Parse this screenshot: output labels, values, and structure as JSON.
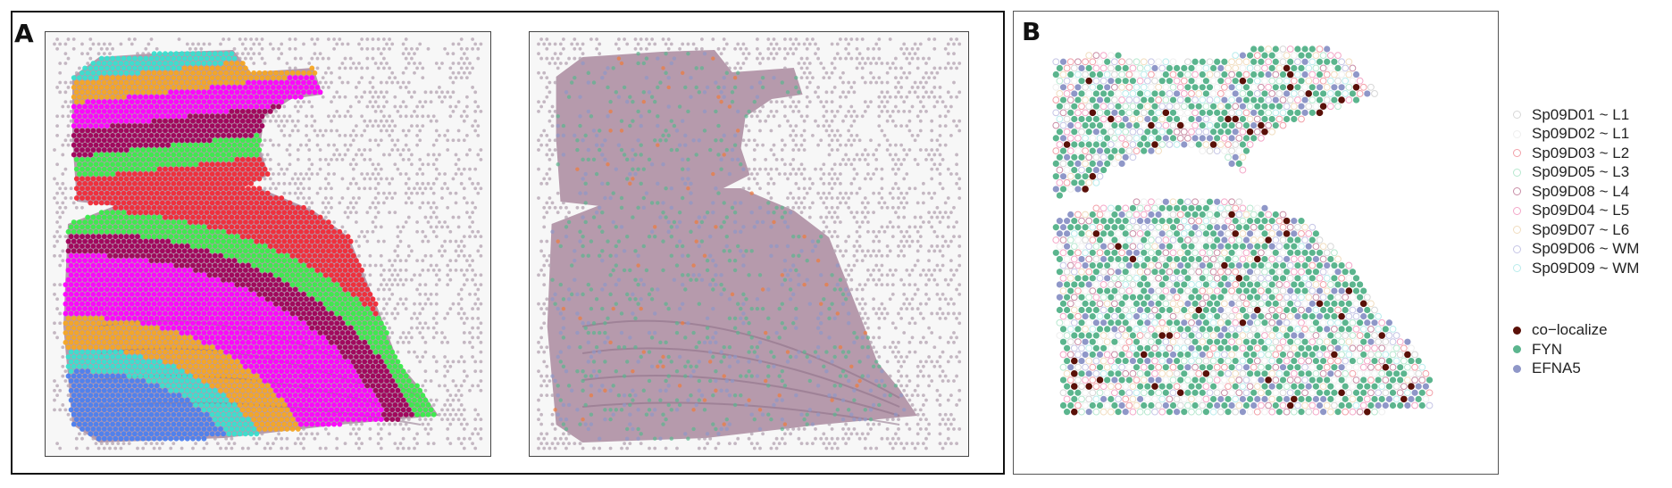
{
  "panels": {
    "a": {
      "letter": "A"
    },
    "b": {
      "letter": "B"
    }
  },
  "legend": {
    "layers": [
      {
        "label": "Sp09D01 ~ L1",
        "color": "#d7d7d7"
      },
      {
        "label": "Sp09D02 ~ L1",
        "color": "#efefef"
      },
      {
        "label": "Sp09D03 ~ L2",
        "color": "#f2a0a8"
      },
      {
        "label": "Sp09D05 ~ L3",
        "color": "#b7e8cf"
      },
      {
        "label": "Sp09D08 ~ L4",
        "color": "#c98da6"
      },
      {
        "label": "Sp09D04 ~ L5",
        "color": "#f4a7c8"
      },
      {
        "label": "Sp09D07 ~ L6",
        "color": "#f1ddbf"
      },
      {
        "label": "Sp09D06 ~ WM",
        "color": "#c6c6e6"
      },
      {
        "label": "Sp09D09 ~ WM",
        "color": "#b9ecec"
      }
    ],
    "genes": [
      {
        "label": "co−localize",
        "color": "#5a1008"
      },
      {
        "label": "FYN",
        "color": "#5bb58e"
      },
      {
        "label": "EFNA5",
        "color": "#8f97c8"
      }
    ]
  },
  "colors": {
    "tissue": "#b69aac",
    "tissue_dark": "#8d6f86",
    "fiducial": "#b3a1b0",
    "layer_L1": "#f5a623",
    "layer_L1b": "#39e0cf",
    "layer_L2": "#ff00ff",
    "layer_L3": "#a0005a",
    "layer_L4": "#39ed4a",
    "layer_L5": "#f22a37",
    "layer_WM": "#4c80ef",
    "spot_fyn": "#5bb58e",
    "spot_efna5": "#8f97c8",
    "spot_coloc": "#5a1008"
  }
}
